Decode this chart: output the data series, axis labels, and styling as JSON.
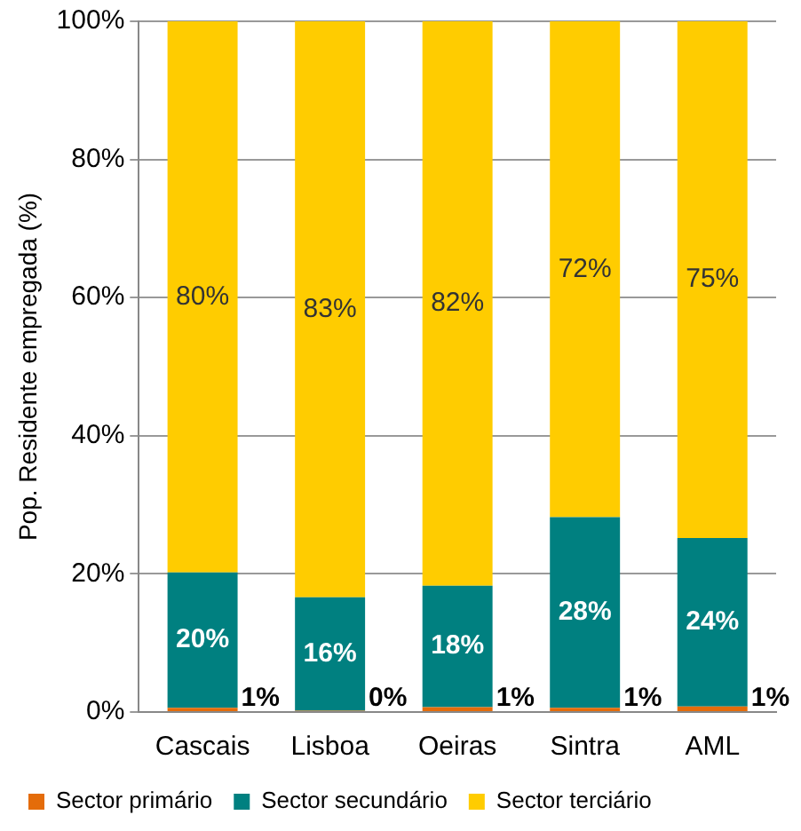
{
  "chart_data": {
    "type": "bar",
    "stacked": true,
    "ylabel": "Pop. Residente empregada (%)",
    "categories": [
      "Cascais",
      "Lisboa",
      "Oeiras",
      "Sintra",
      "AML"
    ],
    "series": [
      {
        "name": "Sector primário",
        "color": "#e46c0a",
        "values": [
          0.6,
          0.2,
          0.7,
          0.6,
          0.8
        ],
        "value_labels": [
          "1%",
          "0%",
          "1%",
          "1%",
          "1%"
        ]
      },
      {
        "name": "Sector secundário",
        "color": "#008080",
        "values": [
          19.6,
          16.4,
          17.6,
          27.6,
          24.4
        ],
        "value_labels": [
          "20%",
          "16%",
          "18%",
          "28%",
          "24%"
        ]
      },
      {
        "name": "Sector terciário",
        "color": "#ffcc00",
        "values": [
          79.8,
          83.4,
          81.7,
          71.8,
          74.8
        ],
        "value_labels": [
          "80%",
          "83%",
          "82%",
          "72%",
          "75%"
        ]
      }
    ],
    "ylim": [
      0,
      100
    ],
    "yticks": [
      {
        "value": 0,
        "label": "0%"
      },
      {
        "value": 20,
        "label": "20%"
      },
      {
        "value": 40,
        "label": "40%"
      },
      {
        "value": 60,
        "label": "60%"
      },
      {
        "value": 80,
        "label": "80%"
      },
      {
        "value": 100,
        "label": "100%"
      }
    ],
    "grid": "y",
    "legend": "bottom"
  }
}
